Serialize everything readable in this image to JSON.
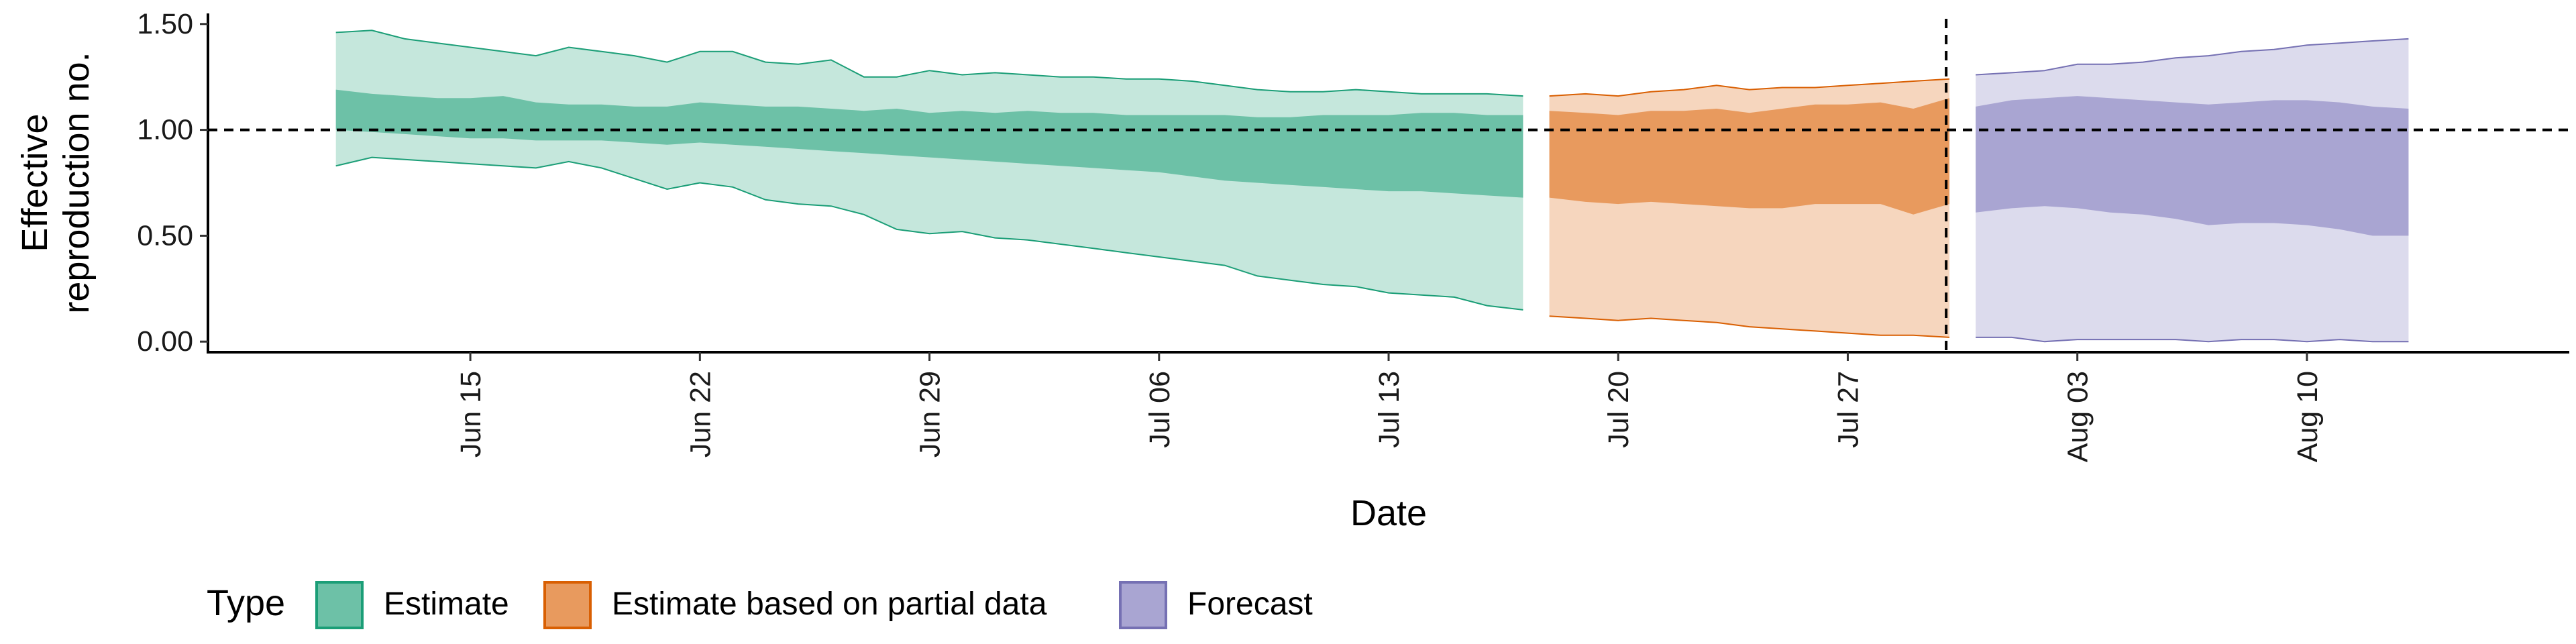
{
  "chart_data": {
    "type": "area",
    "title": "",
    "xlabel": "Date",
    "ylabel_lines": [
      "Effective",
      "reproduction no."
    ],
    "x_ticks": [
      {
        "date": "2020-06-15",
        "label": "Jun 15"
      },
      {
        "date": "2020-06-22",
        "label": "Jun 22"
      },
      {
        "date": "2020-06-29",
        "label": "Jun 29"
      },
      {
        "date": "2020-07-06",
        "label": "Jul 06"
      },
      {
        "date": "2020-07-13",
        "label": "Jul 13"
      },
      {
        "date": "2020-07-20",
        "label": "Jul 20"
      },
      {
        "date": "2020-07-27",
        "label": "Jul 27"
      },
      {
        "date": "2020-08-03",
        "label": "Aug 03"
      },
      {
        "date": "2020-08-10",
        "label": "Aug 10"
      }
    ],
    "y_ticks": [
      {
        "value": 0,
        "label": "0.00"
      },
      {
        "value": 0.5,
        "label": "0.50"
      },
      {
        "value": 1,
        "label": "1.00"
      },
      {
        "value": 1.5,
        "label": "1.50"
      }
    ],
    "xlim": [
      "2020-06-07",
      "2020-08-18"
    ],
    "ylim": [
      -0.05,
      1.55
    ],
    "reference_line_y": 1.0,
    "reference_line_date": "2020-07-30",
    "grid": false,
    "legend": {
      "title": "Type",
      "position": "bottom-left",
      "entries": [
        {
          "label": "Estimate",
          "fill": "#6dc1a7",
          "stroke": "#1b9e77"
        },
        {
          "label": "Estimate based on partial data",
          "fill": "#e89a5e",
          "stroke": "#d95f02"
        },
        {
          "label": "Forecast",
          "fill": "#a9a5d2",
          "stroke": "#7570b3"
        }
      ]
    },
    "series": [
      {
        "name": "Estimate",
        "inner_color": "#6dc1a7",
        "outer_color": "#c5e7dc",
        "line_color": "#1b9e77",
        "dates": [
          "2020-06-11",
          "2020-06-12",
          "2020-06-13",
          "2020-06-14",
          "2020-06-15",
          "2020-06-16",
          "2020-06-17",
          "2020-06-18",
          "2020-06-19",
          "2020-06-20",
          "2020-06-21",
          "2020-06-22",
          "2020-06-23",
          "2020-06-24",
          "2020-06-25",
          "2020-06-26",
          "2020-06-27",
          "2020-06-28",
          "2020-06-29",
          "2020-06-30",
          "2020-07-01",
          "2020-07-02",
          "2020-07-03",
          "2020-07-04",
          "2020-07-05",
          "2020-07-06",
          "2020-07-07",
          "2020-07-08",
          "2020-07-09",
          "2020-07-10",
          "2020-07-11",
          "2020-07-12",
          "2020-07-13",
          "2020-07-14",
          "2020-07-15",
          "2020-07-16",
          "2020-07-17"
        ],
        "upper90": [
          1.46,
          1.47,
          1.43,
          1.41,
          1.39,
          1.37,
          1.35,
          1.39,
          1.37,
          1.35,
          1.32,
          1.37,
          1.37,
          1.32,
          1.31,
          1.33,
          1.25,
          1.25,
          1.28,
          1.26,
          1.27,
          1.26,
          1.25,
          1.25,
          1.24,
          1.24,
          1.23,
          1.21,
          1.19,
          1.18,
          1.18,
          1.19,
          1.18,
          1.17,
          1.17,
          1.17,
          1.16
        ],
        "upper50": [
          1.19,
          1.17,
          1.16,
          1.15,
          1.15,
          1.16,
          1.13,
          1.12,
          1.12,
          1.11,
          1.11,
          1.13,
          1.12,
          1.11,
          1.11,
          1.1,
          1.09,
          1.1,
          1.08,
          1.09,
          1.08,
          1.09,
          1.08,
          1.08,
          1.07,
          1.07,
          1.07,
          1.07,
          1.06,
          1.06,
          1.07,
          1.07,
          1.07,
          1.08,
          1.08,
          1.07,
          1.07
        ],
        "lower50": [
          1.0,
          0.99,
          0.98,
          0.97,
          0.96,
          0.96,
          0.95,
          0.95,
          0.95,
          0.94,
          0.93,
          0.94,
          0.93,
          0.92,
          0.91,
          0.9,
          0.89,
          0.88,
          0.87,
          0.86,
          0.85,
          0.84,
          0.83,
          0.82,
          0.81,
          0.8,
          0.78,
          0.76,
          0.75,
          0.74,
          0.73,
          0.72,
          0.71,
          0.71,
          0.7,
          0.69,
          0.68
        ],
        "lower90": [
          0.83,
          0.87,
          0.86,
          0.85,
          0.84,
          0.83,
          0.82,
          0.85,
          0.82,
          0.77,
          0.72,
          0.75,
          0.73,
          0.67,
          0.65,
          0.64,
          0.6,
          0.53,
          0.51,
          0.52,
          0.49,
          0.48,
          0.46,
          0.44,
          0.42,
          0.4,
          0.38,
          0.36,
          0.31,
          0.29,
          0.27,
          0.26,
          0.23,
          0.22,
          0.21,
          0.17,
          0.15
        ]
      },
      {
        "name": "Estimate based on partial data",
        "inner_color": "#e89a5e",
        "outer_color": "#f6d6be",
        "line_color": "#d95f02",
        "dates": [
          "2020-07-18",
          "2020-07-19",
          "2020-07-20",
          "2020-07-21",
          "2020-07-22",
          "2020-07-23",
          "2020-07-24",
          "2020-07-25",
          "2020-07-26",
          "2020-07-27",
          "2020-07-28",
          "2020-07-29",
          "2020-07-30"
        ],
        "upper90": [
          1.16,
          1.17,
          1.16,
          1.18,
          1.19,
          1.21,
          1.19,
          1.2,
          1.2,
          1.21,
          1.22,
          1.23,
          1.24
        ],
        "upper50": [
          1.09,
          1.08,
          1.07,
          1.09,
          1.09,
          1.1,
          1.08,
          1.1,
          1.12,
          1.12,
          1.13,
          1.1,
          1.15
        ],
        "lower50": [
          0.68,
          0.66,
          0.65,
          0.66,
          0.65,
          0.64,
          0.63,
          0.63,
          0.65,
          0.65,
          0.65,
          0.6,
          0.65
        ],
        "lower90": [
          0.12,
          0.11,
          0.1,
          0.11,
          0.1,
          0.09,
          0.07,
          0.06,
          0.05,
          0.04,
          0.03,
          0.03,
          0.02
        ]
      },
      {
        "name": "Forecast",
        "inner_color": "#a9a5d2",
        "outer_color": "#dcdbed",
        "line_color": "#7570b3",
        "dates": [
          "2020-07-31",
          "2020-08-01",
          "2020-08-02",
          "2020-08-03",
          "2020-08-04",
          "2020-08-05",
          "2020-08-06",
          "2020-08-07",
          "2020-08-08",
          "2020-08-09",
          "2020-08-10",
          "2020-08-11",
          "2020-08-12",
          "2020-08-13"
        ],
        "upper90": [
          1.26,
          1.27,
          1.28,
          1.31,
          1.31,
          1.32,
          1.34,
          1.35,
          1.37,
          1.38,
          1.4,
          1.41,
          1.42,
          1.43
        ],
        "upper50": [
          1.11,
          1.14,
          1.15,
          1.16,
          1.15,
          1.14,
          1.13,
          1.12,
          1.13,
          1.14,
          1.14,
          1.13,
          1.11,
          1.1
        ],
        "lower50": [
          0.61,
          0.63,
          0.64,
          0.63,
          0.61,
          0.6,
          0.58,
          0.55,
          0.56,
          0.56,
          0.55,
          0.53,
          0.5,
          0.5
        ],
        "lower90": [
          0.02,
          0.02,
          0.0,
          0.01,
          0.01,
          0.01,
          0.01,
          0.0,
          0.01,
          0.01,
          0.0,
          0.01,
          0.0,
          0.0
        ]
      }
    ]
  }
}
